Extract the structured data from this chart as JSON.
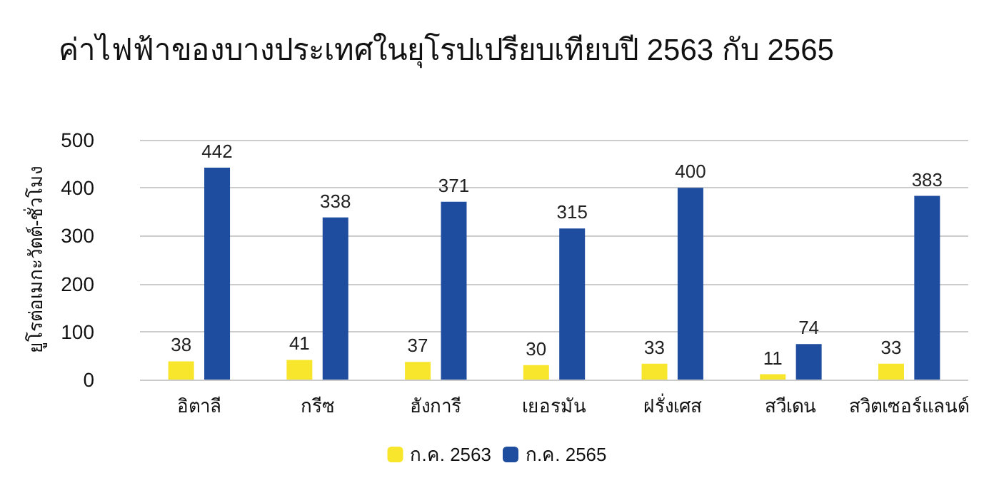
{
  "chart_data": {
    "type": "bar",
    "title": "ค่าไฟฟ้าของบางประเทศในยุโรปเปรียบเทียบปี 2563 กับ 2565",
    "ylabel": "ยูโรต่อเมกะวัตต์-ชั่วโมง",
    "categories": [
      "อิตาลี",
      "กรีซ",
      "ฮังการี",
      "เยอรมัน",
      "ฝรั่งเศส",
      "สวีเดน",
      "สวิตเซอร์แลนด์"
    ],
    "series": [
      {
        "name": "ก.ค. 2563",
        "color": "#f7e62b",
        "values": [
          38,
          41,
          37,
          30,
          33,
          11,
          33
        ]
      },
      {
        "name": "ก.ค. 2565",
        "color": "#1e4c9e",
        "values": [
          442,
          338,
          371,
          315,
          400,
          74,
          383
        ]
      }
    ],
    "ylim": [
      0,
      500
    ],
    "yticks": [
      0,
      100,
      200,
      300,
      400,
      500
    ],
    "grid": "y",
    "legend": "bottom",
    "data_labels": true
  }
}
